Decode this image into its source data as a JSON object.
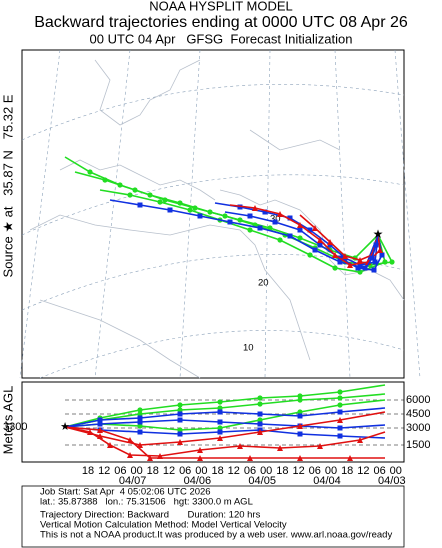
{
  "header": {
    "model": "NOAA HYSPLIT MODEL",
    "title": "Backward trajectories ending at 0000 UTC 08 Apr 26",
    "subtitle": "00 UTC 04 Apr   GFSG  Forecast Initialization"
  },
  "map": {
    "source_label": "Source ★ at   35.87 N   75.32 E",
    "grid_labels": [
      "30",
      "20",
      "10"
    ]
  },
  "height_panel": {
    "ylabel": "Meters AGL",
    "start_height": "3300",
    "yticks": [
      "6000",
      "4500",
      "3000",
      "1500"
    ],
    "hour_labels": [
      "18",
      "12",
      "06",
      "00",
      "18",
      "12",
      "06",
      "00",
      "18",
      "12",
      "06",
      "00",
      "18",
      "12",
      "06",
      "00",
      "18",
      "12",
      "06",
      "00"
    ],
    "date_labels": [
      "04/07",
      "04/06",
      "04/05",
      "04/04",
      "04/03"
    ]
  },
  "footer": [
    "Job Start: Sat Apr  4 05:02:06 UTC 2026",
    "lat.: 35.87388   lon.: 75.31506   hgt: 3300.0 m AGL",
    "Trajectory Direction: Backward       Duration: 120 hrs",
    "Vertical Motion Calculation Method: Model Vertical Velocity",
    "This is not a NOAA product.It was produced by a web user. www.arl.noaa.gov/ready"
  ]
}
